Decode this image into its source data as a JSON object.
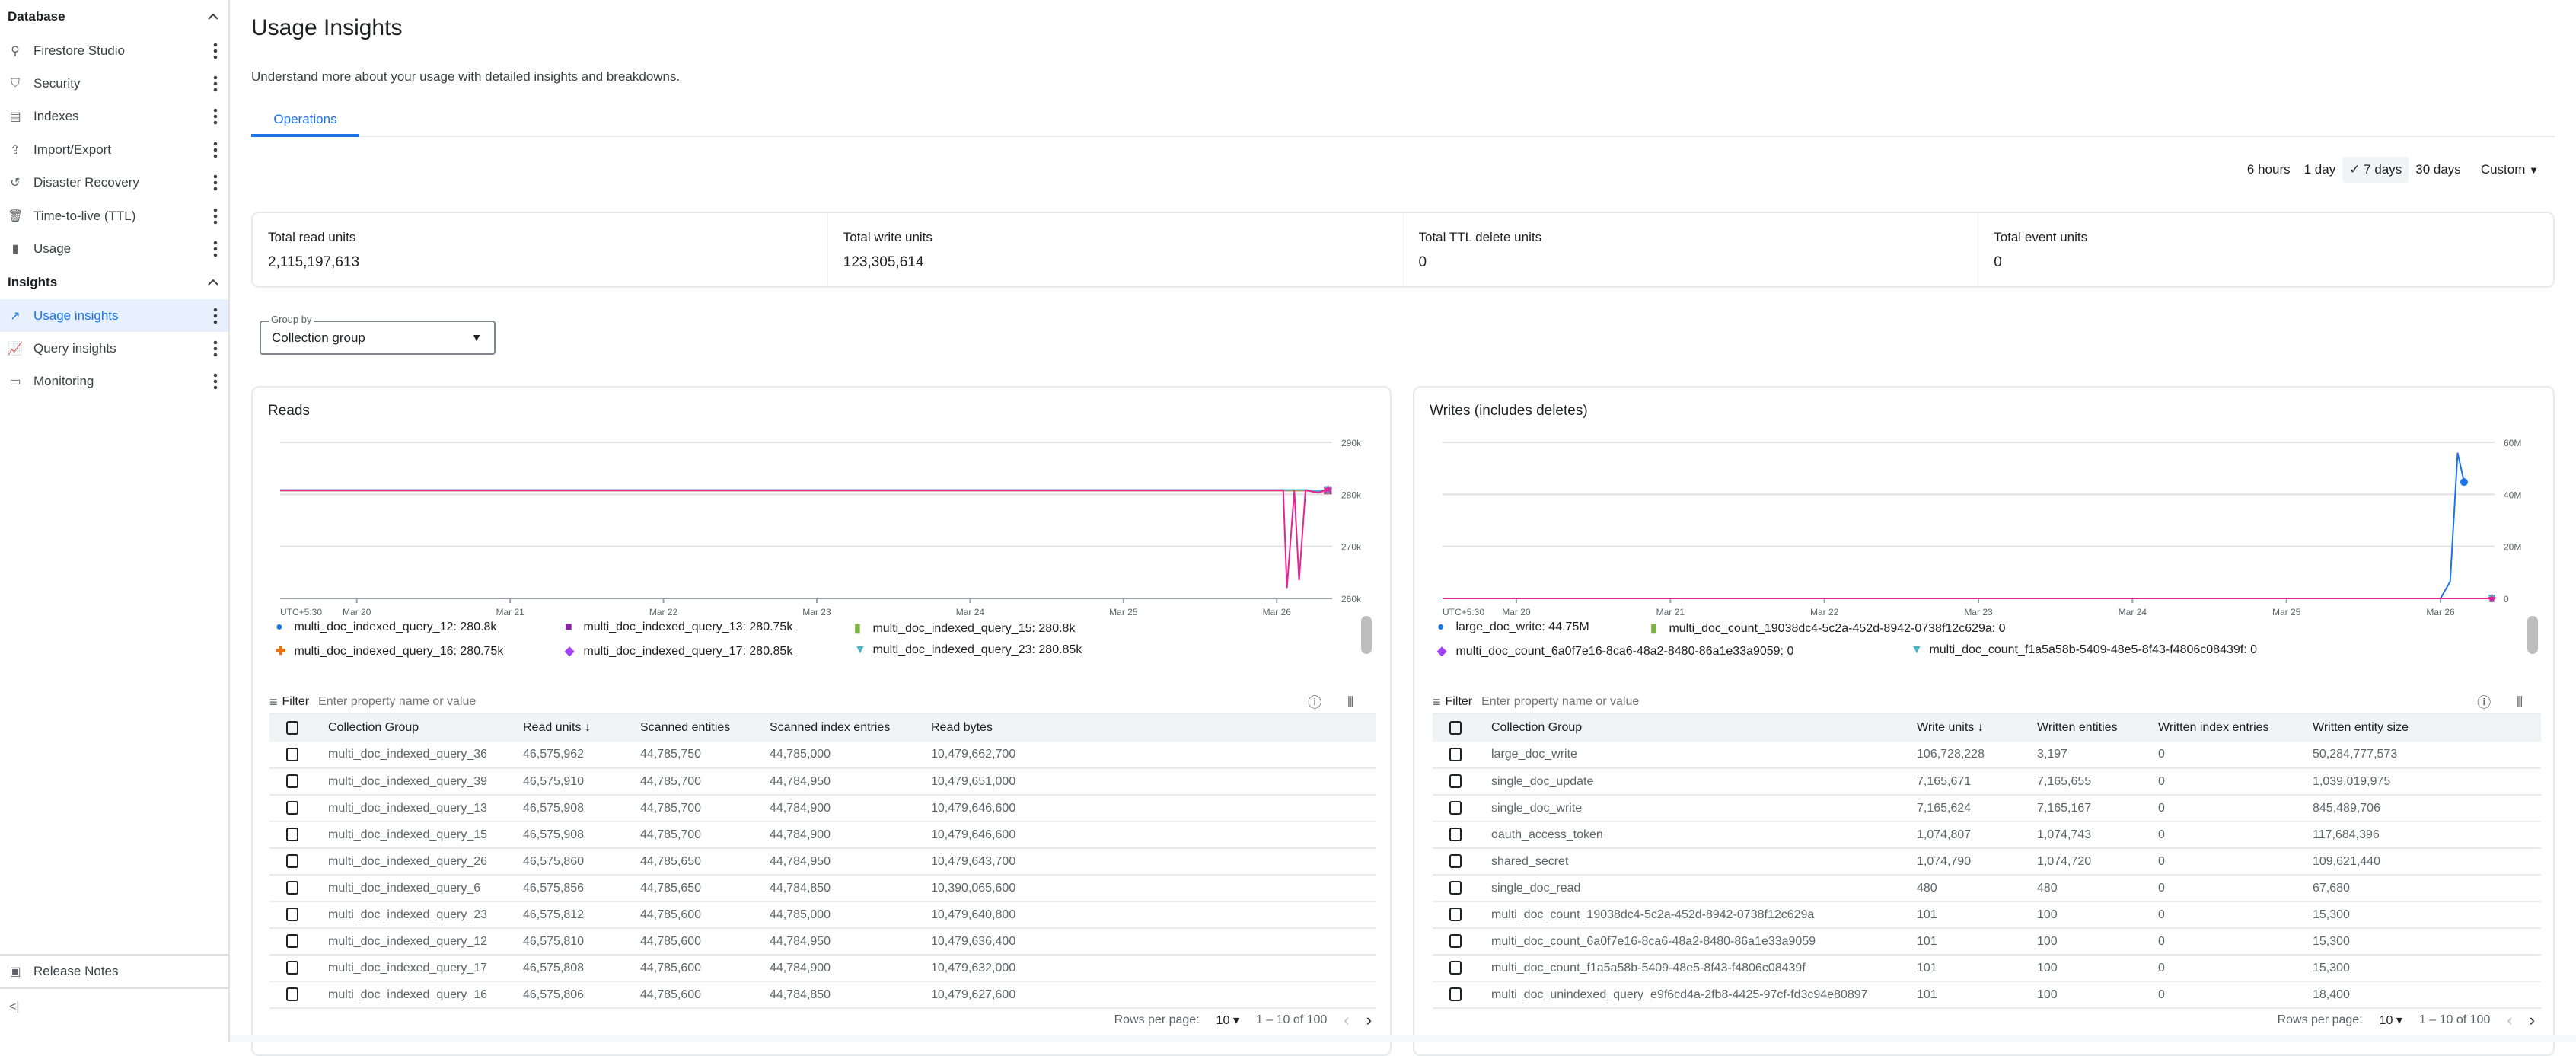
{
  "sidebar": {
    "database_header": "Database",
    "database_items": [
      {
        "label": "Firestore Studio",
        "icon": "search-icon"
      },
      {
        "label": "Security",
        "icon": "shield-icon"
      },
      {
        "label": "Indexes",
        "icon": "index-icon"
      },
      {
        "label": "Import/Export",
        "icon": "upload-icon"
      },
      {
        "label": "Disaster Recovery",
        "icon": "history-icon"
      },
      {
        "label": "Time-to-live (TTL)",
        "icon": "trash-icon"
      },
      {
        "label": "Usage",
        "icon": "bar-chart-icon"
      }
    ],
    "insights_header": "Insights",
    "insights_items": [
      {
        "label": "Usage insights",
        "icon": "trend-icon",
        "active": true
      },
      {
        "label": "Query insights",
        "icon": "query-chart-icon"
      },
      {
        "label": "Monitoring",
        "icon": "monitor-icon"
      }
    ],
    "release_notes": "Release Notes"
  },
  "header": {
    "title": "Usage Insights",
    "subtitle": "Understand more about your usage with detailed insights and breakdowns.",
    "tab": "Operations"
  },
  "time_range": {
    "options": [
      "6 hours",
      "1 day",
      "7 days",
      "30 days"
    ],
    "selected": "7 days",
    "custom": "Custom"
  },
  "summary": [
    {
      "label": "Total read units",
      "value": "2,115,197,613"
    },
    {
      "label": "Total write units",
      "value": "123,305,614"
    },
    {
      "label": "Total TTL delete units",
      "value": "0"
    },
    {
      "label": "Total event units",
      "value": "0"
    }
  ],
  "group_by": {
    "label": "Group by",
    "value": "Collection group"
  },
  "reads": {
    "title": "Reads",
    "filter_label": "Filter",
    "filter_placeholder": "Enter property name or value",
    "columns": [
      "Collection Group",
      "Read units",
      "Scanned entities",
      "Scanned index entries",
      "Read bytes"
    ],
    "rows": [
      [
        "multi_doc_indexed_query_36",
        "46,575,962",
        "44,785,750",
        "44,785,000",
        "10,479,662,700"
      ],
      [
        "multi_doc_indexed_query_39",
        "46,575,910",
        "44,785,700",
        "44,784,950",
        "10,479,651,000"
      ],
      [
        "multi_doc_indexed_query_13",
        "46,575,908",
        "44,785,700",
        "44,784,900",
        "10,479,646,600"
      ],
      [
        "multi_doc_indexed_query_15",
        "46,575,908",
        "44,785,700",
        "44,784,900",
        "10,479,646,600"
      ],
      [
        "multi_doc_indexed_query_26",
        "46,575,860",
        "44,785,650",
        "44,784,950",
        "10,479,643,700"
      ],
      [
        "multi_doc_indexed_query_6",
        "46,575,856",
        "44,785,650",
        "44,784,850",
        "10,390,065,600"
      ],
      [
        "multi_doc_indexed_query_23",
        "46,575,812",
        "44,785,600",
        "44,785,000",
        "10,479,640,800"
      ],
      [
        "multi_doc_indexed_query_12",
        "46,575,810",
        "44,785,600",
        "44,784,950",
        "10,479,636,400"
      ],
      [
        "multi_doc_indexed_query_17",
        "46,575,808",
        "44,785,600",
        "44,784,900",
        "10,479,632,000"
      ],
      [
        "multi_doc_indexed_query_16",
        "46,575,806",
        "44,785,600",
        "44,784,850",
        "10,479,627,600"
      ]
    ],
    "pagination": {
      "rows_per_page_label": "Rows per page:",
      "rows_per_page": "10",
      "range": "1 – 10 of 100"
    }
  },
  "writes": {
    "title": "Writes (includes deletes)",
    "filter_label": "Filter",
    "filter_placeholder": "Enter property name or value",
    "columns": [
      "Collection Group",
      "Write units",
      "Written entities",
      "Written index entries",
      "Written entity size"
    ],
    "rows": [
      [
        "large_doc_write",
        "106,728,228",
        "3,197",
        "0",
        "50,284,777,573"
      ],
      [
        "single_doc_update",
        "7,165,671",
        "7,165,655",
        "0",
        "1,039,019,975"
      ],
      [
        "single_doc_write",
        "7,165,624",
        "7,165,167",
        "0",
        "845,489,706"
      ],
      [
        "oauth_access_token",
        "1,074,807",
        "1,074,743",
        "0",
        "117,684,396"
      ],
      [
        "shared_secret",
        "1,074,790",
        "1,074,720",
        "0",
        "109,621,440"
      ],
      [
        "single_doc_read",
        "480",
        "480",
        "0",
        "67,680"
      ],
      [
        "multi_doc_count_19038dc4-5c2a-452d-8942-0738f12c629a",
        "101",
        "100",
        "0",
        "15,300"
      ],
      [
        "multi_doc_count_6a0f7e16-8ca6-48a2-8480-86a1e33a9059",
        "101",
        "100",
        "0",
        "15,300"
      ],
      [
        "multi_doc_count_f1a5a58b-5409-48e5-8f43-f4806c08439f",
        "101",
        "100",
        "0",
        "15,300"
      ],
      [
        "multi_doc_unindexed_query_e9f6cd4a-2fb8-4425-97cf-fd3c94e80897",
        "101",
        "100",
        "0",
        "18,400"
      ]
    ],
    "pagination": {
      "rows_per_page_label": "Rows per page:",
      "rows_per_page": "10",
      "range": "1 – 10 of 100"
    }
  },
  "chart_data": [
    {
      "type": "line",
      "title": "Reads",
      "timezone_label": "UTC+5:30",
      "x_ticks": [
        "Mar 20",
        "Mar 21",
        "Mar 22",
        "Mar 23",
        "Mar 24",
        "Mar 25",
        "Mar 26"
      ],
      "xlim": [
        "Mar 19 12:00",
        "Mar 26 08:40"
      ],
      "y_ticks": [
        "260k",
        "270k",
        "280k",
        "290k"
      ],
      "ylim": [
        260000,
        290000
      ],
      "grid": true,
      "legend_position": "bottom",
      "x": [
        "Mar 19 12:00",
        "Mar 22 00:00",
        "Mar 26 00:00",
        "Mar 26 01:00",
        "Mar 26 01:35",
        "Mar 26 02:45",
        "Mar 26 03:30",
        "Mar 26 04:30",
        "Mar 26 06:30",
        "Mar 26 08:00"
      ],
      "series": [
        {
          "name": "multi_doc_indexed_query_12",
          "legend_value": "280.8k",
          "color": "#1a73e8",
          "marker": "circle",
          "values": [
            280800,
            280800,
            280800,
            280800,
            280800,
            280800,
            280800,
            280800,
            280700,
            280800
          ]
        },
        {
          "name": "multi_doc_indexed_query_13",
          "legend_value": "280.75k",
          "color": "#8e24aa",
          "marker": "square",
          "values": [
            280750,
            280750,
            280750,
            280750,
            280750,
            280750,
            280750,
            280750,
            280400,
            280750
          ]
        },
        {
          "name": "multi_doc_indexed_query_15",
          "legend_value": "280.8k",
          "color": "#7cb342",
          "marker": "rect",
          "values": [
            280800,
            280800,
            280800,
            280800,
            280800,
            280800,
            280800,
            280800,
            280600,
            280800
          ]
        },
        {
          "name": "multi_doc_indexed_query_16",
          "legend_value": "280.75k",
          "color": "#e8710a",
          "marker": "plus",
          "values": [
            280750,
            280750,
            280750,
            280750,
            280750,
            280750,
            280750,
            280750,
            280500,
            280750
          ]
        },
        {
          "name": "multi_doc_indexed_query_17",
          "legend_value": "280.85k",
          "color": "#a142f4",
          "marker": "diamond",
          "values": [
            280850,
            280850,
            280850,
            280850,
            280850,
            280850,
            280850,
            280850,
            280600,
            280850
          ]
        },
        {
          "name": "multi_doc_indexed_query_23",
          "legend_value": "280.85k",
          "color": "#4ab5c4",
          "marker": "triangle-down",
          "values": [
            280850,
            280850,
            280850,
            280850,
            280850,
            280850,
            280850,
            280850,
            280700,
            280850
          ]
        },
        {
          "color": "#e52592",
          "marker": "star",
          "values": [
            280800,
            280800,
            280800,
            280800,
            262000,
            280800,
            263500,
            280800,
            280300,
            281000
          ]
        }
      ]
    },
    {
      "type": "line",
      "title": "Writes (includes deletes)",
      "timezone_label": "UTC+5:30",
      "x_ticks": [
        "Mar 20",
        "Mar 21",
        "Mar 22",
        "Mar 23",
        "Mar 24",
        "Mar 25",
        "Mar 26"
      ],
      "xlim": [
        "Mar 19 12:30",
        "Mar 26 08:25"
      ],
      "y_ticks": [
        "0",
        "20M",
        "40M",
        "60M"
      ],
      "ylim": [
        0,
        60000000
      ],
      "grid": true,
      "legend_position": "bottom",
      "x": [
        "Mar 19 12:30",
        "Mar 26 00:00",
        "Mar 26 01:30",
        "Mar 26 02:40",
        "Mar 26 03:40",
        "Mar 26 08:00"
      ],
      "series": [
        {
          "name": "large_doc_write",
          "legend_value": "44.75M",
          "color": "#1a73e8",
          "marker": "circle",
          "values": [
            0,
            0,
            6500000,
            56000000,
            44750000,
            null
          ]
        },
        {
          "name": "multi_doc_count_19038dc4-5c2a-452d-8942-0738f12c629a",
          "legend_value": "0",
          "color": "#7cb342",
          "marker": "rect",
          "values": [
            0,
            0,
            0,
            0,
            0,
            0
          ]
        },
        {
          "name": "multi_doc_count_6a0f7e16-8ca6-48a2-8480-86a1e33a9059",
          "legend_value": "0",
          "color": "#a142f4",
          "marker": "diamond",
          "values": [
            0,
            0,
            0,
            0,
            0,
            0
          ]
        },
        {
          "name": "multi_doc_count_f1a5a58b-5409-48e5-8f43-f4806c08439f",
          "legend_value": "0",
          "color": "#4ab5c4",
          "marker": "triangle-down",
          "values": [
            0,
            0,
            0,
            0,
            0,
            0
          ]
        },
        {
          "color": "#e52592",
          "marker": "star",
          "values": [
            0,
            0,
            0,
            0,
            0,
            0
          ]
        }
      ]
    }
  ]
}
